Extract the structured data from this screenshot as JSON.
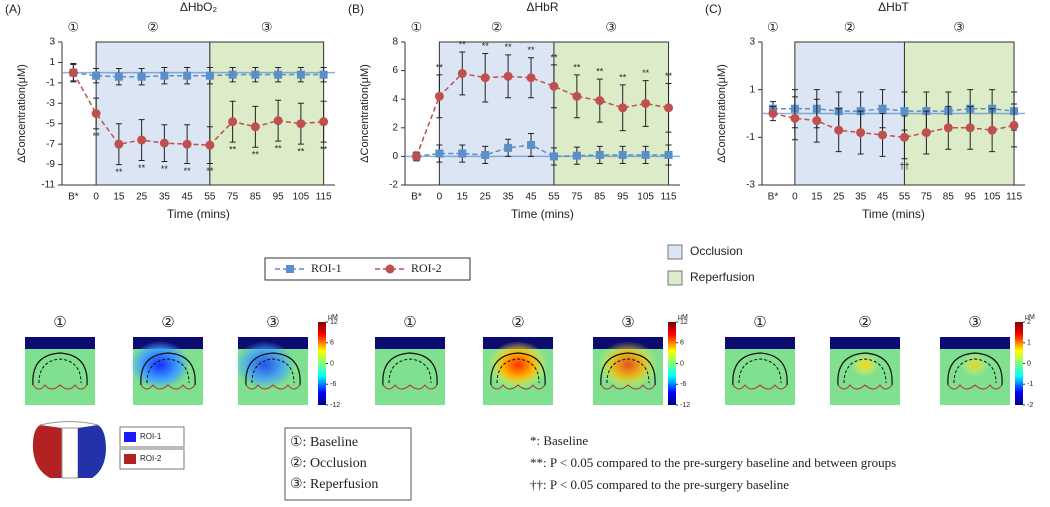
{
  "chart_data": [
    {
      "type": "line",
      "panel": "(A)",
      "title": "ΔHbO₂",
      "phase_marks": [
        "①",
        "②",
        "③"
      ],
      "x_label": "Time (mins)",
      "y_label": "ΔConcentration(μM)",
      "categories": [
        "B*",
        "0",
        "15",
        "25",
        "35",
        "45",
        "55",
        "75",
        "85",
        "95",
        "105",
        "115"
      ],
      "ylim": [
        -11,
        3
      ],
      "yticks": [
        -11,
        -9,
        -7,
        -5,
        -3,
        -1,
        1,
        3
      ],
      "series": [
        {
          "name": "ROI-1",
          "color": "#5b8fc9",
          "marker": "square",
          "values": [
            0,
            -0.3,
            -0.4,
            -0.4,
            -0.3,
            -0.3,
            -0.3,
            -0.2,
            -0.2,
            -0.2,
            -0.2,
            -0.2
          ],
          "errors": [
            0.8,
            0.7,
            0.8,
            0.8,
            0.8,
            0.8,
            0.8,
            0.7,
            0.7,
            0.7,
            0.7,
            0.7
          ]
        },
        {
          "name": "ROI-2",
          "color": "#c0504d",
          "marker": "circle",
          "values": [
            0,
            -4,
            -7,
            -6.6,
            -6.9,
            -7,
            -7.1,
            -4.8,
            -5.3,
            -4.7,
            -5,
            -4.8
          ],
          "errors": [
            0.9,
            1.5,
            2,
            2,
            1.8,
            1.9,
            1.8,
            2,
            2,
            2,
            2,
            2
          ]
        }
      ],
      "significance": [
        null,
        "**",
        "**",
        "**",
        "**",
        "**",
        "**",
        "**",
        "**",
        "**",
        "**",
        "**"
      ]
    },
    {
      "type": "line",
      "panel": "(B)",
      "title": "ΔHbR",
      "phase_marks": [
        "①",
        "②",
        "③"
      ],
      "x_label": "Time (mins)",
      "y_label": "ΔConcentration(μM)",
      "categories": [
        "B*",
        "0",
        "15",
        "25",
        "35",
        "45",
        "55",
        "75",
        "85",
        "95",
        "105",
        "115"
      ],
      "ylim": [
        -2,
        8
      ],
      "yticks": [
        -2,
        0,
        2,
        4,
        6,
        8
      ],
      "series": [
        {
          "name": "ROI-1",
          "color": "#5b8fc9",
          "marker": "square",
          "values": [
            0,
            0.2,
            0.2,
            0.1,
            0.6,
            0.8,
            0,
            0.05,
            0.1,
            0.1,
            0.1,
            0.1
          ],
          "errors": [
            0.3,
            0.6,
            0.6,
            0.6,
            0.6,
            0.8,
            0.6,
            0.6,
            0.6,
            0.6,
            0.6,
            0.7
          ]
        },
        {
          "name": "ROI-2",
          "color": "#c0504d",
          "marker": "circle",
          "values": [
            0,
            4.2,
            5.8,
            5.5,
            5.6,
            5.5,
            4.9,
            4.2,
            3.9,
            3.4,
            3.7,
            3.4
          ],
          "errors": [
            0.3,
            1.5,
            1.5,
            1.7,
            1.5,
            1.4,
            1.5,
            1.5,
            1.5,
            1.6,
            1.6,
            1.7
          ]
        }
      ],
      "significance": [
        null,
        "**",
        "**",
        "**",
        "**",
        "**",
        "**",
        "**",
        "**",
        "**",
        "**",
        "**"
      ]
    },
    {
      "type": "line",
      "panel": "(C)",
      "title": "ΔHbT",
      "phase_marks": [
        "①",
        "②",
        "③"
      ],
      "x_label": "Time (mins)",
      "y_label": "ΔConcentration(μM)",
      "categories": [
        "B*",
        "0",
        "15",
        "25",
        "35",
        "45",
        "55",
        "75",
        "85",
        "95",
        "105",
        "115"
      ],
      "ylim": [
        -3,
        3
      ],
      "yticks": [
        -3,
        -1,
        1,
        3
      ],
      "series": [
        {
          "name": "ROI-1",
          "color": "#5b8fc9",
          "marker": "square",
          "values": [
            0.2,
            0.2,
            0.2,
            0.1,
            0.1,
            0.2,
            0.1,
            0.1,
            0.1,
            0.2,
            0.2,
            0.1
          ],
          "errors": [
            0.3,
            0.8,
            0.8,
            0.8,
            0.8,
            0.8,
            0.8,
            0.8,
            0.8,
            0.8,
            0.8,
            0.8
          ]
        },
        {
          "name": "ROI-2",
          "color": "#c0504d",
          "marker": "circle",
          "values": [
            0,
            -0.2,
            -0.3,
            -0.7,
            -0.8,
            -0.9,
            -1,
            -0.8,
            -0.6,
            -0.6,
            -0.7,
            -0.5
          ],
          "errors": [
            0.3,
            0.9,
            0.9,
            0.9,
            0.9,
            0.9,
            0.9,
            0.9,
            0.9,
            0.9,
            0.9,
            0.9
          ]
        }
      ],
      "significance": [
        null,
        null,
        null,
        null,
        null,
        null,
        "††",
        null,
        null,
        null,
        null,
        null
      ]
    }
  ],
  "phases": [
    {
      "name": "Occlusion",
      "color": "#dce5f4",
      "start": "0",
      "end": "55"
    },
    {
      "name": "Reperfusion",
      "color": "#dcebc8",
      "start": "55",
      "end": "115"
    }
  ],
  "heatmaps": {
    "groups": [
      {
        "panels": [
          "①",
          "②",
          "③"
        ],
        "unit": "μM",
        "ticks": [
          12,
          6,
          0,
          -6,
          -12
        ]
      },
      {
        "panels": [
          "①",
          "②",
          "③"
        ],
        "unit": "μM",
        "ticks": [
          12,
          6,
          0,
          -6,
          -12
        ]
      },
      {
        "panels": [
          "①",
          "②",
          "③"
        ],
        "unit": "μM",
        "ticks": [
          2,
          1,
          0,
          -1,
          -2
        ]
      }
    ]
  },
  "roi_key": [
    "ROI-1",
    "ROI-2"
  ],
  "phase_key": [
    "①: Baseline",
    "②: Occlusion",
    "③: Reperfusion"
  ],
  "notes": [
    "*: Baseline",
    "**: P < 0.05 compared to the pre-surgery baseline and between groups",
    "††: P < 0.05 compared to the pre-surgery baseline"
  ]
}
